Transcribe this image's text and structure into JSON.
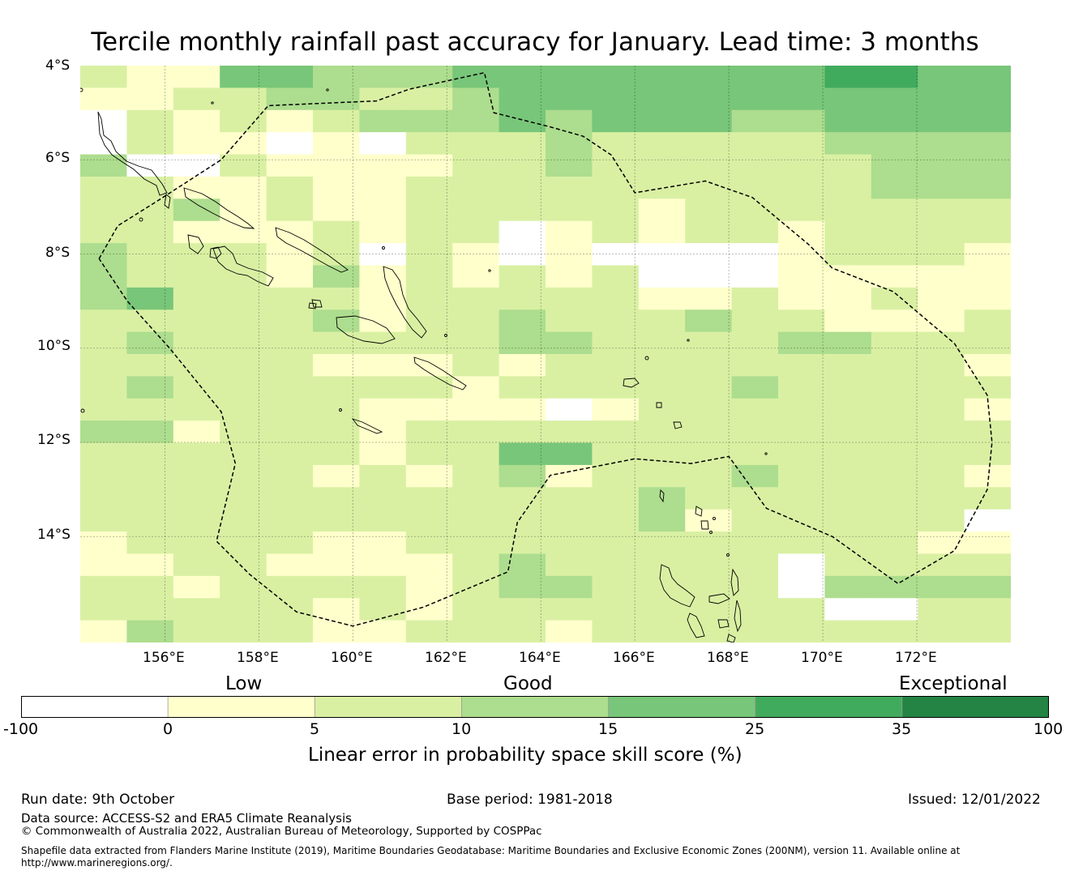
{
  "title": "Tercile monthly rainfall past accuracy for January. Lead time: 3 months",
  "map": {
    "lon_range": [
      154.2,
      174
    ],
    "lat_range": [
      -16.25,
      -4
    ],
    "y_ticks": [
      "4°S",
      "6°S",
      "8°S",
      "10°S",
      "12°S",
      "14°S"
    ],
    "x_ticks": [
      "156°E",
      "158°E",
      "160°E",
      "162°E",
      "164°E",
      "166°E",
      "168°E",
      "170°E",
      "172°E"
    ],
    "grid_cell_deg": 0.84,
    "skill_grid_rows_north_to_south": [
      "21144333444444445544",
      "11223322344444444444",
      "02121233343444334444",
      "02110102223222223333",
      "30021111223222222333",
      "22112112222222222333",
      "22312112222212222222",
      "22111212201212212222",
      "32221202101000012221",
      "32221312121200011111",
      "34222212222211211211",
      "22222312232223221112",
      "23222222233222233222",
      "22222111212222222221",
      "23222222122222322222",
      "22222211110122222221",
      "33122212222222222222",
      "22222212244222222222",
      "22222121231222322221",
      "22222222222232222222",
      "22222222222231222220",
      "12222112222222222211",
      "11221111232222202222",
      "22122221233222203333",
      "22222121222222220022",
      "13222112221222222222"
    ],
    "color_levels": [
      "#ffffff",
      "#ffffcc",
      "#d9f0a3",
      "#addd8e",
      "#78c679",
      "#41ab5d",
      "#238443"
    ],
    "zone_boundary_lonlat": [
      [
        154.6,
        -8.1
      ],
      [
        155.0,
        -7.4
      ],
      [
        155.8,
        -6.9
      ],
      [
        157.2,
        -6.0
      ],
      [
        158.2,
        -4.85
      ],
      [
        160.5,
        -4.75
      ],
      [
        161.2,
        -4.5
      ],
      [
        162.8,
        -4.15
      ],
      [
        163.0,
        -5.0
      ],
      [
        164.2,
        -5.3
      ],
      [
        164.9,
        -5.5
      ],
      [
        165.5,
        -5.9
      ],
      [
        166.0,
        -6.7
      ],
      [
        167.5,
        -6.45
      ],
      [
        168.5,
        -6.8
      ],
      [
        169.7,
        -7.8
      ],
      [
        170.2,
        -8.3
      ],
      [
        171.5,
        -8.8
      ],
      [
        172.8,
        -9.9
      ],
      [
        173.5,
        -11.0
      ],
      [
        173.6,
        -12.0
      ],
      [
        173.5,
        -13.0
      ],
      [
        172.8,
        -14.3
      ],
      [
        171.6,
        -15.0
      ],
      [
        170.2,
        -14.0
      ],
      [
        168.8,
        -13.4
      ],
      [
        168.0,
        -12.3
      ],
      [
        167.2,
        -12.45
      ],
      [
        166.0,
        -12.35
      ],
      [
        164.2,
        -12.7
      ],
      [
        163.5,
        -13.7
      ],
      [
        163.3,
        -14.75
      ],
      [
        161.5,
        -15.5
      ],
      [
        160.0,
        -15.9
      ],
      [
        158.8,
        -15.6
      ],
      [
        157.8,
        -14.8
      ],
      [
        157.1,
        -14.1
      ],
      [
        157.5,
        -12.45
      ],
      [
        157.2,
        -11.35
      ],
      [
        156.1,
        -10.0
      ],
      [
        155.2,
        -9.0
      ],
      [
        154.6,
        -8.1
      ]
    ]
  },
  "colorbar": {
    "ticks": [
      "-100",
      "0",
      "5",
      "10",
      "15",
      "25",
      "35",
      "100"
    ],
    "categories": [
      "Low",
      "Good",
      "Exceptional"
    ],
    "label": "Linear error in probability space skill score (%)"
  },
  "footer": {
    "run_date": "Run date: 9th October",
    "base_period": "Base period: 1981-2018",
    "issued": "Issued: 12/01/2022",
    "data_source": "Data source: ACCESS-S2 and ERA5 Climate Reanalysis",
    "copyright": "© Commonwealth of Australia 2022, Australian Bureau of Meteorology, Supported by COSPPac",
    "shapefile_line1": "Shapefile data extracted from Flanders Marine Institute (2019), Maritime Boundaries Geodatabase: Maritime Boundaries and Exclusive Economic Zones (200NM), version 11. Available online at",
    "shapefile_line2": "http://www.marineregions.org/."
  }
}
